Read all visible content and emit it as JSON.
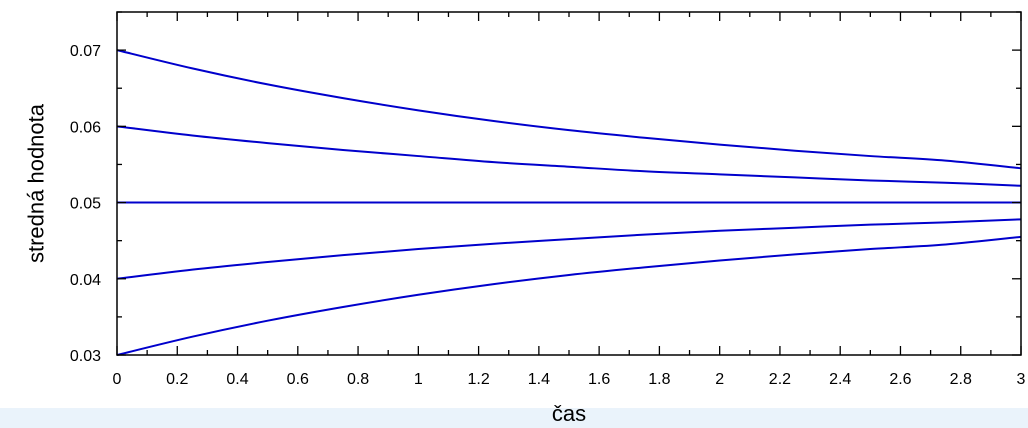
{
  "chart_data": {
    "type": "line",
    "title": "",
    "xlabel": "čas",
    "ylabel": "stredná hodnota",
    "xlim": [
      0,
      3
    ],
    "ylim": [
      0.03,
      0.075
    ],
    "x_ticks": [
      "0",
      "0.2",
      "0.4",
      "0.6",
      "0.8",
      "1",
      "1.2",
      "1.4",
      "1.6",
      "1.8",
      "2",
      "2.2",
      "2.4",
      "2.6",
      "2.8",
      "3"
    ],
    "y_ticks": [
      "0.03",
      "0.04",
      "0.05",
      "0.06",
      "0.07"
    ],
    "grid": false,
    "line_color": "#0000cc",
    "series": [
      {
        "x": [
          0,
          0.25,
          0.5,
          0.75,
          1,
          1.25,
          1.5,
          1.75,
          2,
          2.25,
          2.5,
          2.75,
          3
        ],
        "y": [
          0.07,
          0.0676,
          0.0655,
          0.0637,
          0.0621,
          0.0607,
          0.0595,
          0.0585,
          0.0576,
          0.0568,
          0.0561,
          0.0555,
          0.0545
        ]
      },
      {
        "x": [
          0,
          0.25,
          0.5,
          0.75,
          1,
          1.25,
          1.5,
          1.75,
          2,
          2.25,
          2.5,
          2.75,
          3
        ],
        "y": [
          0.06,
          0.0588,
          0.0578,
          0.0569,
          0.0561,
          0.0553,
          0.0547,
          0.0541,
          0.0537,
          0.0533,
          0.0529,
          0.0526,
          0.0522
        ]
      },
      {
        "x": [
          0,
          3
        ],
        "y": [
          0.05,
          0.05
        ]
      },
      {
        "x": [
          0,
          0.25,
          0.5,
          0.75,
          1,
          1.25,
          1.5,
          1.75,
          2,
          2.25,
          2.5,
          2.75,
          3
        ],
        "y": [
          0.04,
          0.0412,
          0.0422,
          0.0431,
          0.0439,
          0.0446,
          0.0452,
          0.0458,
          0.0463,
          0.0467,
          0.0471,
          0.0474,
          0.0478
        ]
      },
      {
        "x": [
          0,
          0.25,
          0.5,
          0.75,
          1,
          1.25,
          1.5,
          1.75,
          2,
          2.25,
          2.5,
          2.75,
          3
        ],
        "y": [
          0.03,
          0.0324,
          0.0345,
          0.0363,
          0.0379,
          0.0393,
          0.0405,
          0.0415,
          0.0424,
          0.0432,
          0.0439,
          0.0445,
          0.0455
        ]
      }
    ]
  }
}
